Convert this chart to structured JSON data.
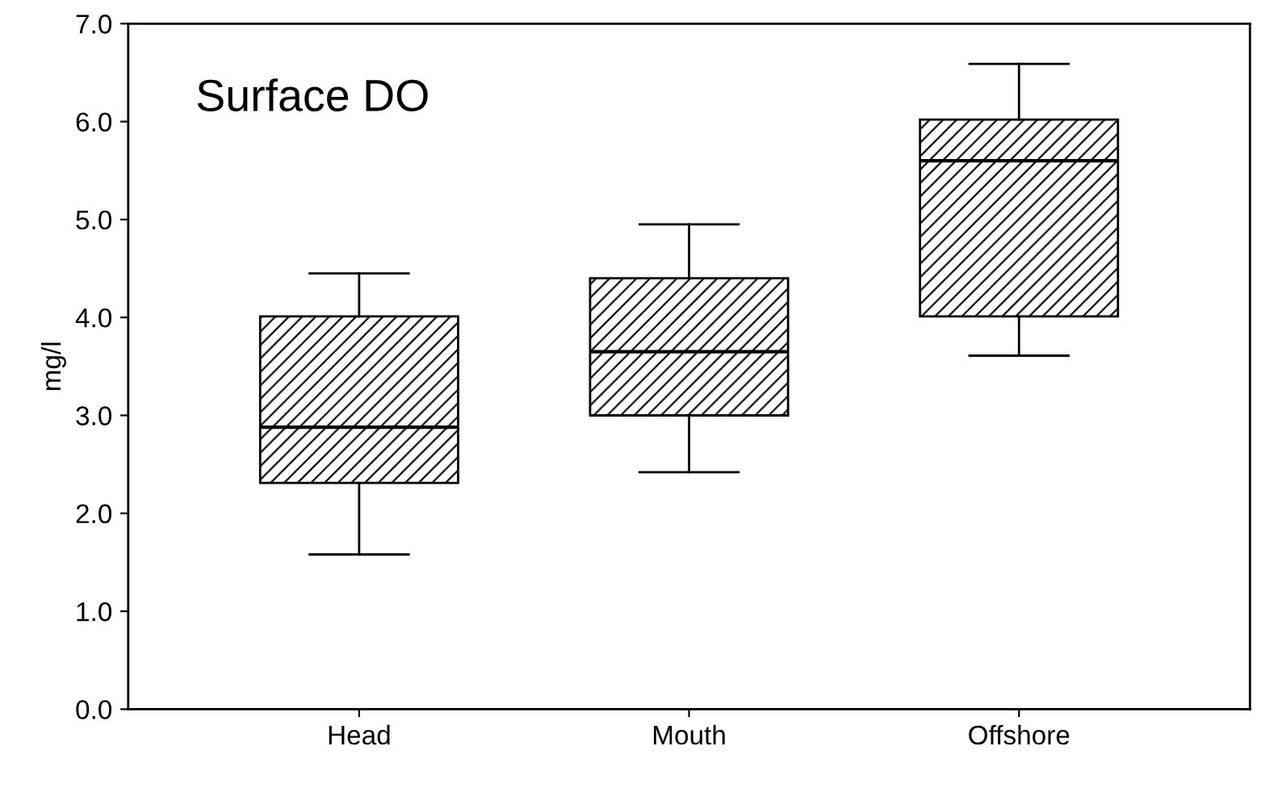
{
  "chart_data": {
    "type": "box",
    "title": "Surface DO",
    "ylabel": "mg/l",
    "categories": [
      "Head",
      "Mouth",
      "Offshore"
    ],
    "boxes": [
      {
        "low": 1.58,
        "q1": 2.31,
        "median": 2.88,
        "q3": 4.01,
        "high": 4.45
      },
      {
        "low": 2.42,
        "q1": 3.0,
        "median": 3.65,
        "q3": 4.4,
        "high": 4.95
      },
      {
        "low": 3.61,
        "q1": 4.01,
        "median": 5.6,
        "q3": 6.02,
        "high": 6.59
      }
    ],
    "color": "#000000",
    "ylim": [
      0,
      7
    ],
    "yticks": [
      {
        "value": 0,
        "label": "0.0"
      },
      {
        "value": 1,
        "label": "1.0"
      },
      {
        "value": 2,
        "label": "2.0"
      },
      {
        "value": 3,
        "label": "3.0"
      },
      {
        "value": 4,
        "label": "4.0"
      },
      {
        "value": 5,
        "label": "5.0"
      },
      {
        "value": 6,
        "label": "6.0"
      },
      {
        "value": 7,
        "label": "7.0"
      }
    ],
    "grid": false
  }
}
